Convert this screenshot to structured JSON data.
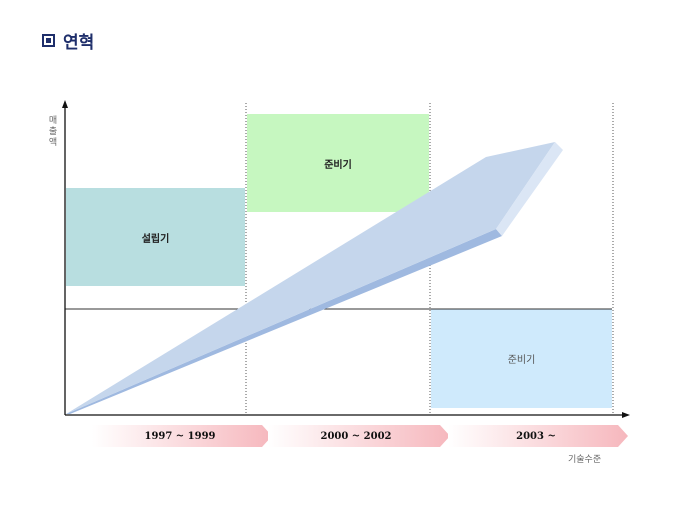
{
  "header": {
    "title": "연혁",
    "icon": "filled-square-icon"
  },
  "diagram": {
    "y_axis_label": "매\n출\n액",
    "x_axis_label": "기술수준",
    "stages": [
      {
        "label": "설립기"
      },
      {
        "label": "준비기"
      },
      {
        "label": "준비기"
      }
    ],
    "periods": [
      {
        "label": "1997 ~ 1999"
      },
      {
        "label": "2000 ~ 2002"
      },
      {
        "label": "2003 ~"
      }
    ],
    "colors": {
      "stage1": "#b8dee0",
      "stage2": "#c6f7c0",
      "stage3": "#cfeafc",
      "growth_arrow": "#c5d6ec",
      "period_band": "#f6b7bd"
    }
  }
}
